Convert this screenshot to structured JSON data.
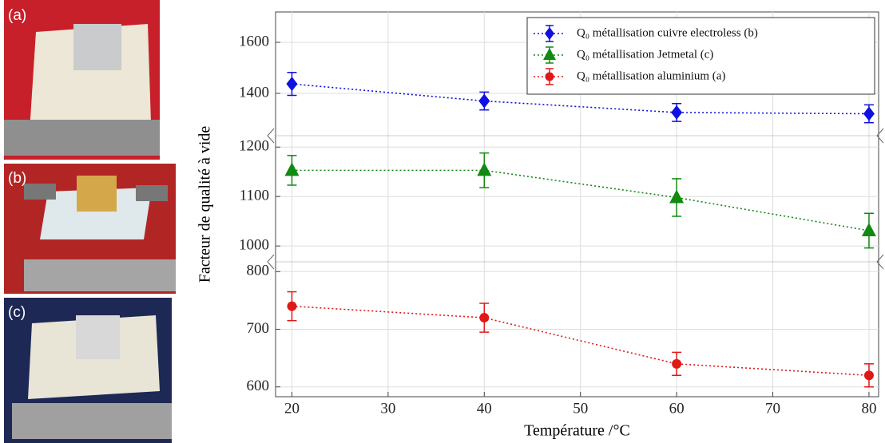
{
  "photos": {
    "labels": [
      "(a)",
      "(b)",
      "(c)"
    ]
  },
  "chart_data": [
    {
      "type": "line",
      "xlim": [
        18.3,
        81
      ],
      "ylim": [
        1234,
        1719
      ],
      "yticks": [
        1400,
        1600
      ],
      "grid": true,
      "legend": "upper right",
      "series": [
        {
          "name": "Q₀ métallisation cuivre electroless (b)",
          "color": "#1010e0",
          "marker": "diamond",
          "linestyle": "dotted",
          "x": [
            20,
            40,
            60,
            80
          ],
          "values": [
            1437,
            1370,
            1325,
            1320
          ],
          "errors": [
            45,
            35,
            35,
            35
          ]
        }
      ]
    },
    {
      "type": "line",
      "xlim": [
        18.3,
        81
      ],
      "ylim": [
        968,
        1223
      ],
      "yticks": [
        1000,
        1100,
        1200
      ],
      "grid": true,
      "y_label": "Facteur de qualité à vide",
      "series": [
        {
          "name": "Q₀ métallisation Jetmetal (c)",
          "color": "#108a10",
          "marker": "triangle",
          "linestyle": "dotted",
          "x": [
            20,
            40,
            60,
            80
          ],
          "values": [
            1153,
            1153,
            1098,
            1031
          ],
          "errors": [
            30,
            35,
            38,
            35
          ]
        }
      ]
    },
    {
      "type": "line",
      "xlim": [
        18.3,
        81
      ],
      "ylim": [
        583,
        817
      ],
      "yticks": [
        600,
        700,
        800
      ],
      "grid": true,
      "xticks": [
        20,
        30,
        40,
        50,
        60,
        70,
        80
      ],
      "x_label": "Température /°C",
      "series": [
        {
          "name": "Q₀ métallisation aluminium (a)",
          "color": "#e01818",
          "marker": "circle",
          "linestyle": "dotted",
          "x": [
            20,
            40,
            60,
            80
          ],
          "values": [
            740,
            720,
            640,
            620
          ],
          "errors": [
            25,
            25,
            20,
            20
          ]
        }
      ]
    }
  ]
}
